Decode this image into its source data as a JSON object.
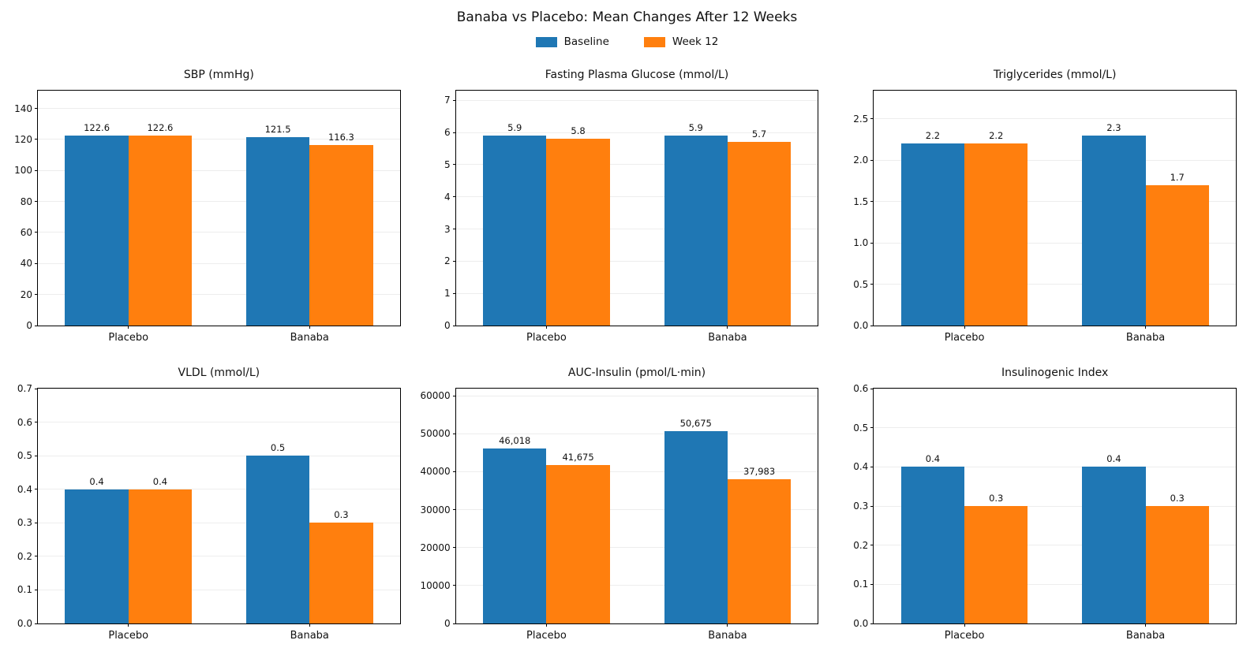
{
  "figure": {
    "title": "Banaba vs Placebo: Mean Changes After 12 Weeks",
    "legend": [
      {
        "label": "Baseline",
        "color": "#1f77b4"
      },
      {
        "label": "Week 12",
        "color": "#ff7f0e"
      }
    ],
    "background": "#ffffff"
  },
  "chart_data": [
    {
      "type": "bar",
      "title": "SBP (mmHg)",
      "categories": [
        "Placebo",
        "Banaba"
      ],
      "series": [
        {
          "name": "Baseline",
          "color": "#1f77b4",
          "values": [
            122.6,
            121.5
          ],
          "labels": [
            "122.6",
            "121.5"
          ]
        },
        {
          "name": "Week 12",
          "color": "#ff7f0e",
          "values": [
            122.6,
            116.3
          ],
          "labels": [
            "122.6",
            "116.3"
          ]
        }
      ],
      "ylim": [
        0,
        151.5
      ],
      "yticks": [
        0,
        20,
        40,
        60,
        80,
        100,
        120,
        140
      ],
      "ytick_labels": [
        "0",
        "20",
        "40",
        "60",
        "80",
        "100",
        "120",
        "140"
      ],
      "grid": true,
      "legend_position": "figure-top-center"
    },
    {
      "type": "bar",
      "title": "Fasting Plasma Glucose (mmol/L)",
      "categories": [
        "Placebo",
        "Banaba"
      ],
      "series": [
        {
          "name": "Baseline",
          "color": "#1f77b4",
          "values": [
            5.9,
            5.9
          ],
          "labels": [
            "5.9",
            "5.9"
          ]
        },
        {
          "name": "Week 12",
          "color": "#ff7f0e",
          "values": [
            5.8,
            5.7
          ],
          "labels": [
            "5.8",
            "5.7"
          ]
        }
      ],
      "ylim": [
        0,
        7.3
      ],
      "yticks": [
        0,
        1,
        2,
        3,
        4,
        5,
        6,
        7
      ],
      "ytick_labels": [
        "0",
        "1",
        "2",
        "3",
        "4",
        "5",
        "6",
        "7"
      ],
      "grid": true,
      "legend_position": "figure-top-center"
    },
    {
      "type": "bar",
      "title": "Triglycerides (mmol/L)",
      "categories": [
        "Placebo",
        "Banaba"
      ],
      "series": [
        {
          "name": "Baseline",
          "color": "#1f77b4",
          "values": [
            2.2,
            2.3
          ],
          "labels": [
            "2.2",
            "2.3"
          ]
        },
        {
          "name": "Week 12",
          "color": "#ff7f0e",
          "values": [
            2.2,
            1.7
          ],
          "labels": [
            "2.2",
            "1.7"
          ]
        }
      ],
      "ylim": [
        0,
        2.84
      ],
      "yticks": [
        0,
        0.5,
        1.0,
        1.5,
        2.0,
        2.5
      ],
      "ytick_labels": [
        "0.0",
        "0.5",
        "1.0",
        "1.5",
        "2.0",
        "2.5"
      ],
      "grid": true,
      "legend_position": "figure-top-center"
    },
    {
      "type": "bar",
      "title": "VLDL (mmol/L)",
      "categories": [
        "Placebo",
        "Banaba"
      ],
      "series": [
        {
          "name": "Baseline",
          "color": "#1f77b4",
          "values": [
            0.4,
            0.5
          ],
          "labels": [
            "0.4",
            "0.5"
          ]
        },
        {
          "name": "Week 12",
          "color": "#ff7f0e",
          "values": [
            0.4,
            0.3
          ],
          "labels": [
            "0.4",
            "0.3"
          ]
        }
      ],
      "ylim": [
        0,
        0.7
      ],
      "yticks": [
        0,
        0.1,
        0.2,
        0.3,
        0.4,
        0.5,
        0.6,
        0.7
      ],
      "ytick_labels": [
        "0.0",
        "0.1",
        "0.2",
        "0.3",
        "0.4",
        "0.5",
        "0.6",
        "0.7"
      ],
      "grid": true,
      "legend_position": "figure-top-center"
    },
    {
      "type": "bar",
      "title": "AUC-Insulin (pmol/L·min)",
      "categories": [
        "Placebo",
        "Banaba"
      ],
      "series": [
        {
          "name": "Baseline",
          "color": "#1f77b4",
          "values": [
            46018,
            50675
          ],
          "labels": [
            "46,018",
            "50,675"
          ]
        },
        {
          "name": "Week 12",
          "color": "#ff7f0e",
          "values": [
            41675,
            37983
          ],
          "labels": [
            "41,675",
            "37,983"
          ]
        }
      ],
      "ylim": [
        0,
        61900
      ],
      "yticks": [
        0,
        10000,
        20000,
        30000,
        40000,
        50000,
        60000
      ],
      "ytick_labels": [
        "0",
        "10000",
        "20000",
        "30000",
        "40000",
        "50000",
        "60000"
      ],
      "grid": true,
      "legend_position": "figure-top-center"
    },
    {
      "type": "bar",
      "title": "Insulinogenic Index",
      "categories": [
        "Placebo",
        "Banaba"
      ],
      "series": [
        {
          "name": "Baseline",
          "color": "#1f77b4",
          "values": [
            0.4,
            0.4
          ],
          "labels": [
            "0.4",
            "0.4"
          ]
        },
        {
          "name": "Week 12",
          "color": "#ff7f0e",
          "values": [
            0.3,
            0.3
          ],
          "labels": [
            "0.3",
            "0.3"
          ]
        }
      ],
      "ylim": [
        0,
        0.6
      ],
      "yticks": [
        0,
        0.1,
        0.2,
        0.3,
        0.4,
        0.5,
        0.6
      ],
      "ytick_labels": [
        "0.0",
        "0.1",
        "0.2",
        "0.3",
        "0.4",
        "0.5",
        "0.6"
      ],
      "grid": true,
      "legend_position": "figure-top-center"
    }
  ]
}
